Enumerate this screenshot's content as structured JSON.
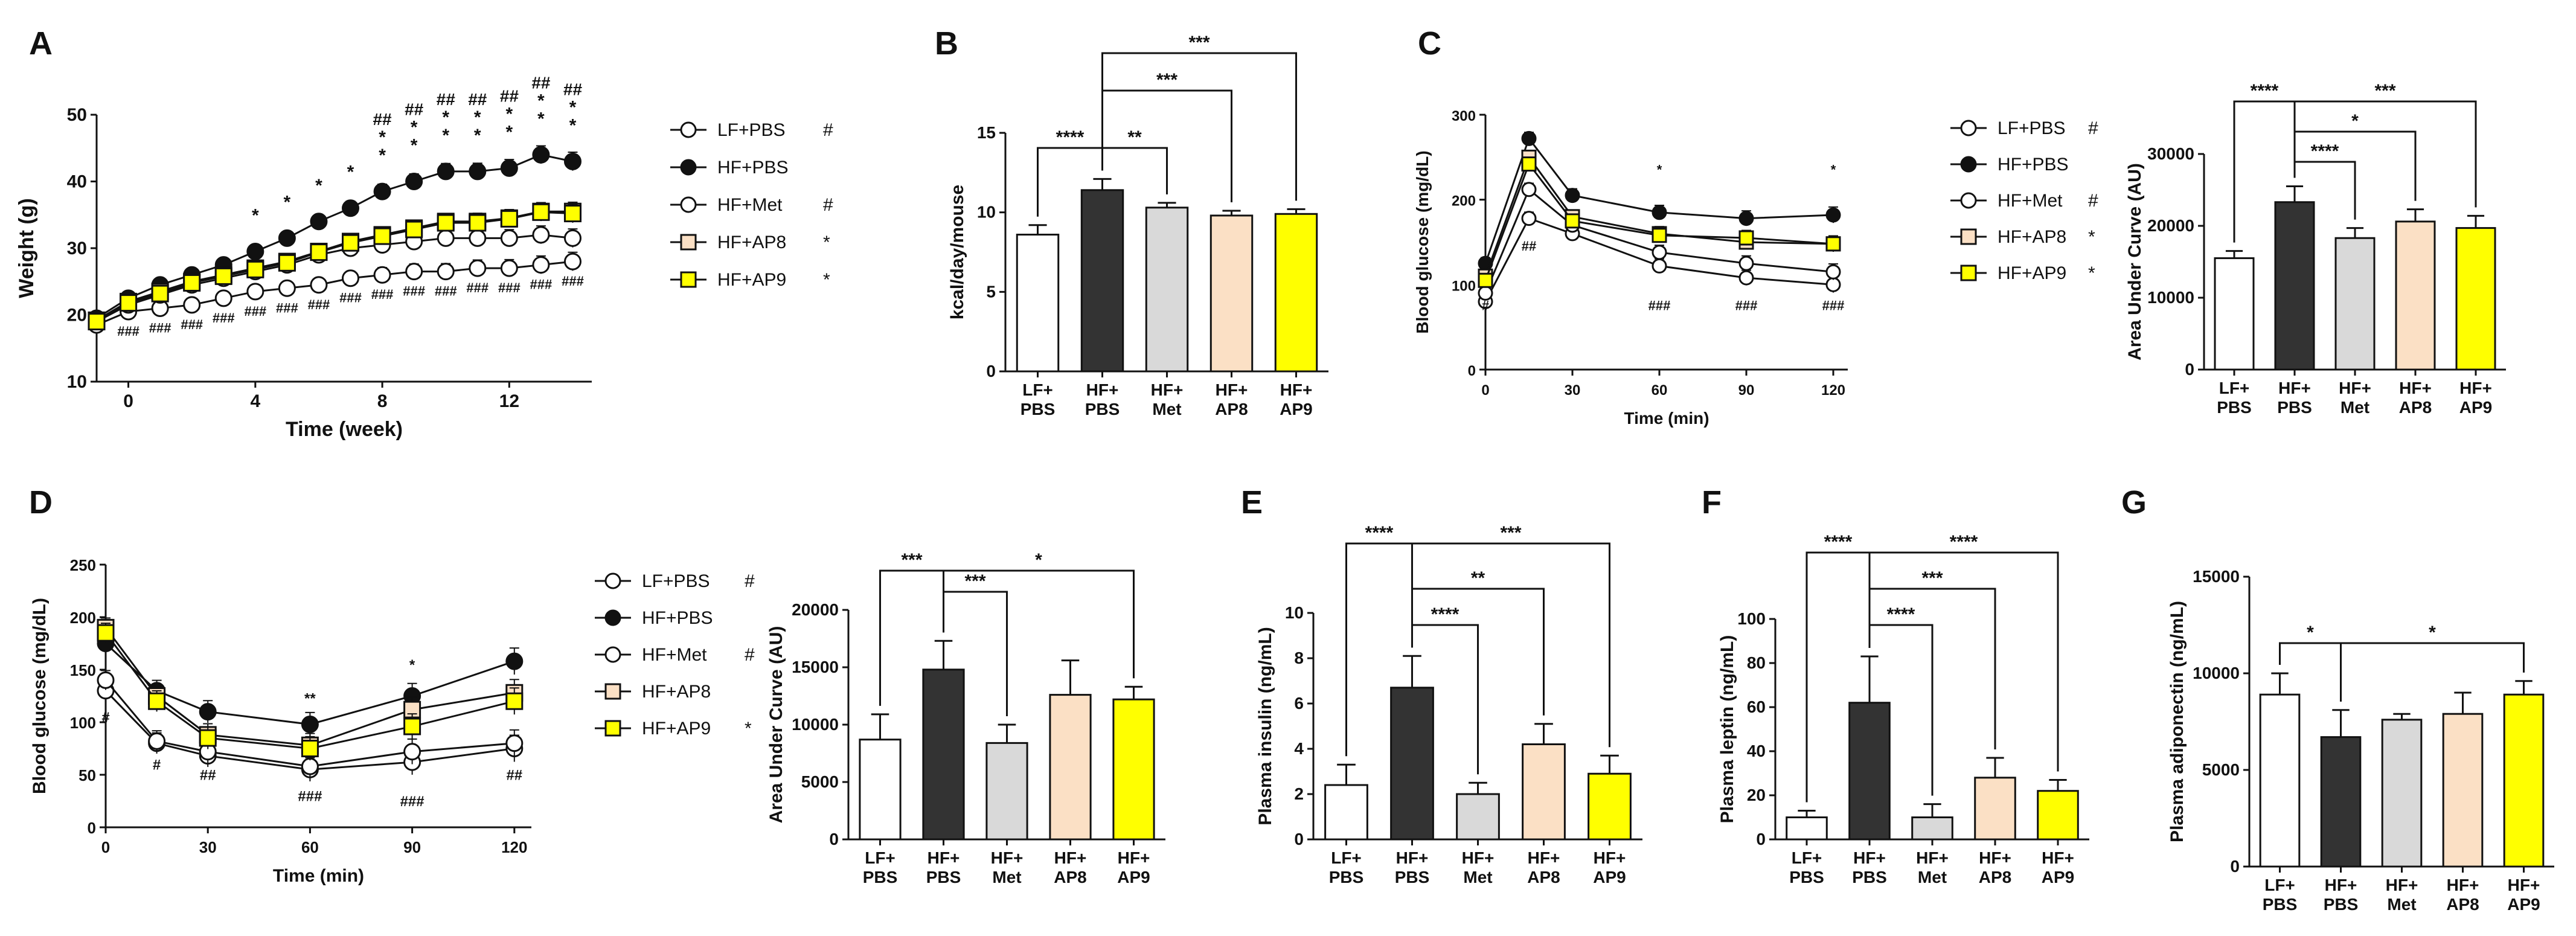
{
  "figure_panels": [
    "A",
    "B",
    "C",
    "D",
    "E",
    "F",
    "G"
  ],
  "colors": {
    "LF+PBS": "#ffffff",
    "HF+PBS": "#333333",
    "HF+Met": "#d9d9d9",
    "HF+AP8": "#fbe0c5",
    "HF+AP9": "#ffff00",
    "line": "#111111"
  },
  "chart_data": [
    {
      "panel": "A",
      "type": "line",
      "xlabel": "Time (week)",
      "ylabel": "Weight (g)",
      "xlim": [
        -1,
        14.6
      ],
      "ylim": [
        10,
        50
      ],
      "xticks": [
        0,
        4,
        8,
        12
      ],
      "yticks": [
        10,
        20,
        30,
        40,
        50
      ],
      "x": [
        -1,
        0,
        1,
        2,
        3,
        4,
        5,
        6,
        7,
        8,
        9,
        10,
        11,
        12,
        13,
        14
      ],
      "series": [
        {
          "name": "LF+PBS",
          "legend": "LF+PBS",
          "marker": "#",
          "values": [
            18.5,
            20.5,
            21.0,
            21.5,
            22.5,
            23.5,
            24.0,
            24.5,
            25.5,
            26.0,
            26.5,
            26.5,
            27.0,
            27.0,
            27.5,
            28.0
          ]
        },
        {
          "name": "HF+PBS",
          "legend": "HF+PBS",
          "marker": "",
          "values": [
            19.5,
            22.5,
            24.5,
            26.0,
            27.5,
            29.5,
            31.5,
            34.0,
            36.0,
            38.5,
            40.0,
            41.5,
            41.5,
            42.0,
            44.0,
            43.0
          ]
        },
        {
          "name": "HF+Met",
          "legend": "HF+Met",
          "marker": "#",
          "values": [
            19.0,
            21.5,
            23.0,
            24.5,
            25.5,
            26.5,
            27.5,
            29.0,
            30.0,
            30.5,
            31.0,
            31.5,
            31.5,
            31.5,
            32.0,
            31.5
          ]
        },
        {
          "name": "HF+AP8",
          "legend": "HF+AP8",
          "marker": "*",
          "values": [
            19.2,
            22.0,
            23.5,
            25.0,
            26.0,
            27.0,
            28.0,
            29.5,
            31.0,
            32.0,
            33.0,
            34.0,
            34.0,
            34.5,
            35.5,
            35.5
          ]
        },
        {
          "name": "HF+AP9",
          "legend": "HF+AP9",
          "marker": "*",
          "values": [
            19.0,
            21.8,
            23.2,
            24.8,
            25.8,
            26.8,
            27.8,
            29.4,
            30.8,
            31.8,
            32.8,
            33.8,
            33.8,
            34.4,
            35.4,
            35.2
          ]
        }
      ],
      "annotations": {
        "top_black": "*",
        "top_gray": "*",
        "top_hash": "##",
        "top_hash3": "###",
        "bottom": "###"
      }
    },
    {
      "panel": "B",
      "type": "bar",
      "ylabel": "kcal/day/mouse",
      "ylim": [
        0,
        15
      ],
      "yticks": [
        0,
        5,
        10,
        15
      ],
      "categories": [
        [
          "LF+",
          "PBS"
        ],
        [
          "HF+",
          "PBS"
        ],
        [
          "HF+",
          "Met"
        ],
        [
          "HF+",
          "AP8"
        ],
        [
          "HF+",
          "AP9"
        ]
      ],
      "values": [
        8.6,
        11.4,
        10.3,
        9.8,
        9.9
      ],
      "errors": [
        0.6,
        0.7,
        0.3,
        0.3,
        0.3
      ],
      "significance": [
        "****",
        "**",
        "***",
        "***"
      ]
    },
    {
      "panel": "C",
      "type": "line",
      "xlabel": "Time (min)",
      "ylabel": "Blood  glucose (mg/dL)",
      "xlim": [
        0,
        125
      ],
      "ylim": [
        0,
        300
      ],
      "xticks": [
        0,
        30,
        60,
        90,
        120
      ],
      "yticks": [
        0,
        100,
        200,
        300
      ],
      "x": [
        0,
        15,
        30,
        60,
        90,
        120
      ],
      "series": [
        {
          "name": "LF+PBS",
          "legend": "LF+PBS",
          "marker": "#",
          "values": [
            80,
            178,
            160,
            122,
            108,
            100
          ]
        },
        {
          "name": "HF+PBS",
          "legend": "HF+PBS",
          "marker": "",
          "values": [
            125,
            272,
            205,
            185,
            178,
            182
          ]
        },
        {
          "name": "HF+Met",
          "legend": "HF+Met",
          "marker": "#",
          "values": [
            90,
            212,
            170,
            138,
            125,
            115
          ]
        },
        {
          "name": "HF+AP8",
          "legend": "HF+AP8",
          "marker": "*",
          "values": [
            110,
            250,
            180,
            160,
            150,
            148
          ]
        },
        {
          "name": "HF+AP9",
          "legend": "HF+AP9",
          "marker": "*",
          "values": [
            105,
            242,
            175,
            158,
            155,
            148
          ]
        }
      ],
      "annotations": {
        "star": "*",
        "hash1": "#",
        "hash2": "##",
        "hash3": "###"
      }
    },
    {
      "panel": "C2",
      "type": "bar",
      "ylabel": "Area Under Curve (AU)",
      "ylim": [
        0,
        30000
      ],
      "yticks": [
        0,
        10000,
        20000,
        30000
      ],
      "categories": [
        [
          "LF+",
          "PBS"
        ],
        [
          "HF+",
          "PBS"
        ],
        [
          "HF+",
          "Met"
        ],
        [
          "HF+",
          "AP8"
        ],
        [
          "HF+",
          "AP9"
        ]
      ],
      "values": [
        15500,
        23300,
        18300,
        20600,
        19700
      ],
      "errors": [
        1000,
        2200,
        1400,
        1700,
        1700
      ],
      "significance": [
        "****",
        "****",
        "*",
        "***"
      ]
    },
    {
      "panel": "D",
      "type": "line",
      "xlabel": "Time (min)",
      "ylabel": "Blood  glucose (mg/dL)",
      "xlim": [
        0,
        125
      ],
      "ylim": [
        0,
        250
      ],
      "xticks": [
        0,
        30,
        60,
        90,
        120
      ],
      "yticks": [
        0,
        50,
        100,
        150,
        200,
        250
      ],
      "x": [
        0,
        15,
        30,
        60,
        90,
        120
      ],
      "series": [
        {
          "name": "LF+PBS",
          "legend": "LF+PBS",
          "marker": "#",
          "values": [
            130,
            80,
            68,
            55,
            62,
            75
          ]
        },
        {
          "name": "HF+PBS",
          "legend": "HF+PBS",
          "marker": "",
          "values": [
            175,
            130,
            110,
            98,
            125,
            158
          ]
        },
        {
          "name": "HF+Met",
          "legend": "HF+Met",
          "marker": "#",
          "values": [
            140,
            82,
            72,
            58,
            72,
            80
          ]
        },
        {
          "name": "HF+AP8",
          "legend": "HF+AP8",
          "marker": "",
          "values": [
            190,
            125,
            88,
            78,
            112,
            128
          ]
        },
        {
          "name": "HF+AP9",
          "legend": "HF+AP9",
          "marker": "*",
          "values": [
            185,
            120,
            85,
            75,
            96,
            120
          ]
        }
      ],
      "annotations": {
        "star1": "*",
        "star2": "**",
        "hash1": "#",
        "hash2": "##",
        "hash3": "###"
      }
    },
    {
      "panel": "D2",
      "type": "bar",
      "ylabel": "Area Under Curve (AU)",
      "ylim": [
        0,
        20000
      ],
      "yticks": [
        0,
        5000,
        10000,
        15000,
        20000
      ],
      "categories": [
        [
          "LF+",
          "PBS"
        ],
        [
          "HF+",
          "PBS"
        ],
        [
          "HF+",
          "Met"
        ],
        [
          "HF+",
          "AP8"
        ],
        [
          "HF+",
          "AP9"
        ]
      ],
      "values": [
        8700,
        14800,
        8400,
        12600,
        12200
      ],
      "errors": [
        2200,
        2500,
        1600,
        3000,
        1100
      ],
      "significance": [
        "***",
        "***",
        "*"
      ]
    },
    {
      "panel": "E",
      "type": "bar",
      "ylabel": "Plasma insulin (ng/mL)",
      "ylim": [
        0,
        10
      ],
      "yticks": [
        0,
        2,
        4,
        6,
        8,
        10
      ],
      "categories": [
        [
          "LF+",
          "PBS"
        ],
        [
          "HF+",
          "PBS"
        ],
        [
          "HF+",
          "Met"
        ],
        [
          "HF+",
          "AP8"
        ],
        [
          "HF+",
          "AP9"
        ]
      ],
      "values": [
        2.4,
        6.7,
        2.0,
        4.2,
        2.9
      ],
      "errors": [
        0.9,
        1.4,
        0.5,
        0.9,
        0.8
      ],
      "significance": [
        "****",
        "****",
        "**",
        "***"
      ]
    },
    {
      "panel": "F",
      "type": "bar",
      "ylabel": "Plasma leptin (ng/mL)",
      "ylim": [
        0,
        100
      ],
      "yticks": [
        0,
        20,
        40,
        60,
        80,
        100
      ],
      "categories": [
        [
          "LF+",
          "PBS"
        ],
        [
          "HF+",
          "PBS"
        ],
        [
          "HF+",
          "Met"
        ],
        [
          "HF+",
          "AP8"
        ],
        [
          "HF+",
          "AP9"
        ]
      ],
      "values": [
        10,
        62,
        10,
        28,
        22
      ],
      "errors": [
        3,
        21,
        6,
        9,
        5
      ],
      "significance": [
        "****",
        "****",
        "***",
        "****"
      ]
    },
    {
      "panel": "G",
      "type": "bar",
      "ylabel": "Plasma adiponectin (ng/mL)",
      "ylim": [
        0,
        15000
      ],
      "yticks": [
        0,
        5000,
        10000,
        15000
      ],
      "categories": [
        [
          "LF+",
          "PBS"
        ],
        [
          "HF+",
          "PBS"
        ],
        [
          "HF+",
          "Met"
        ],
        [
          "HF+",
          "AP8"
        ],
        [
          "HF+",
          "AP9"
        ]
      ],
      "values": [
        8900,
        6700,
        7600,
        7900,
        8900
      ],
      "errors": [
        1100,
        1400,
        300,
        1100,
        700
      ],
      "significance": [
        "*",
        "*"
      ]
    }
  ]
}
